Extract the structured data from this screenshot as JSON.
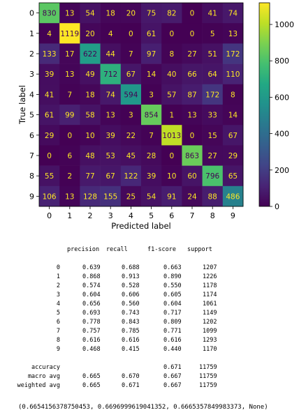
{
  "chart_data": {
    "type": "heatmap",
    "xlabel": "Predicted label",
    "ylabel": "True label",
    "labels": [
      "0",
      "1",
      "2",
      "3",
      "4",
      "5",
      "6",
      "7",
      "8",
      "9"
    ],
    "matrix": [
      [
        830,
        13,
        54,
        18,
        20,
        75,
        82,
        0,
        41,
        74
      ],
      [
        4,
        1119,
        20,
        4,
        0,
        61,
        0,
        0,
        5,
        13
      ],
      [
        133,
        17,
        622,
        44,
        7,
        97,
        8,
        27,
        51,
        172
      ],
      [
        39,
        13,
        49,
        712,
        67,
        14,
        40,
        66,
        64,
        110
      ],
      [
        41,
        7,
        18,
        74,
        594,
        3,
        57,
        87,
        172,
        8
      ],
      [
        61,
        99,
        58,
        13,
        3,
        854,
        1,
        13,
        33,
        14
      ],
      [
        29,
        0,
        10,
        39,
        22,
        7,
        1013,
        0,
        15,
        67
      ],
      [
        0,
        6,
        48,
        53,
        45,
        28,
        0,
        863,
        27,
        29
      ],
      [
        55,
        2,
        77,
        67,
        122,
        39,
        10,
        60,
        796,
        65
      ],
      [
        106,
        13,
        128,
        155,
        25,
        54,
        91,
        24,
        88,
        486
      ]
    ],
    "vmin": 0,
    "vmax": 1119,
    "colormap": "viridis",
    "colorbar_ticks": [
      0,
      200,
      400,
      600,
      800,
      1000
    ]
  },
  "report": {
    "headers": [
      "precision",
      "recall",
      "f1-score",
      "support"
    ],
    "rows": [
      {
        "label": "0",
        "precision": "0.639",
        "recall": "0.688",
        "f1": "0.663",
        "support": "1207"
      },
      {
        "label": "1",
        "precision": "0.868",
        "recall": "0.913",
        "f1": "0.890",
        "support": "1226"
      },
      {
        "label": "2",
        "precision": "0.574",
        "recall": "0.528",
        "f1": "0.550",
        "support": "1178"
      },
      {
        "label": "3",
        "precision": "0.604",
        "recall": "0.606",
        "f1": "0.605",
        "support": "1174"
      },
      {
        "label": "4",
        "precision": "0.656",
        "recall": "0.560",
        "f1": "0.604",
        "support": "1061"
      },
      {
        "label": "5",
        "precision": "0.693",
        "recall": "0.743",
        "f1": "0.717",
        "support": "1149"
      },
      {
        "label": "6",
        "precision": "0.778",
        "recall": "0.843",
        "f1": "0.809",
        "support": "1202"
      },
      {
        "label": "7",
        "precision": "0.757",
        "recall": "0.785",
        "f1": "0.771",
        "support": "1099"
      },
      {
        "label": "8",
        "precision": "0.616",
        "recall": "0.616",
        "f1": "0.616",
        "support": "1293"
      },
      {
        "label": "9",
        "precision": "0.468",
        "recall": "0.415",
        "f1": "0.440",
        "support": "1170"
      }
    ],
    "summary": [
      {
        "label": "accuracy",
        "precision": "",
        "recall": "",
        "f1": "0.671",
        "support": "11759"
      },
      {
        "label": "macro avg",
        "precision": "0.665",
        "recall": "0.670",
        "f1": "0.667",
        "support": "11759"
      },
      {
        "label": "weighted avg",
        "precision": "0.665",
        "recall": "0.671",
        "f1": "0.667",
        "support": "11759"
      }
    ]
  },
  "result_tuple": "(0.6654156378750453, 0.6696999619041352, 0.6665357849983373, None)"
}
